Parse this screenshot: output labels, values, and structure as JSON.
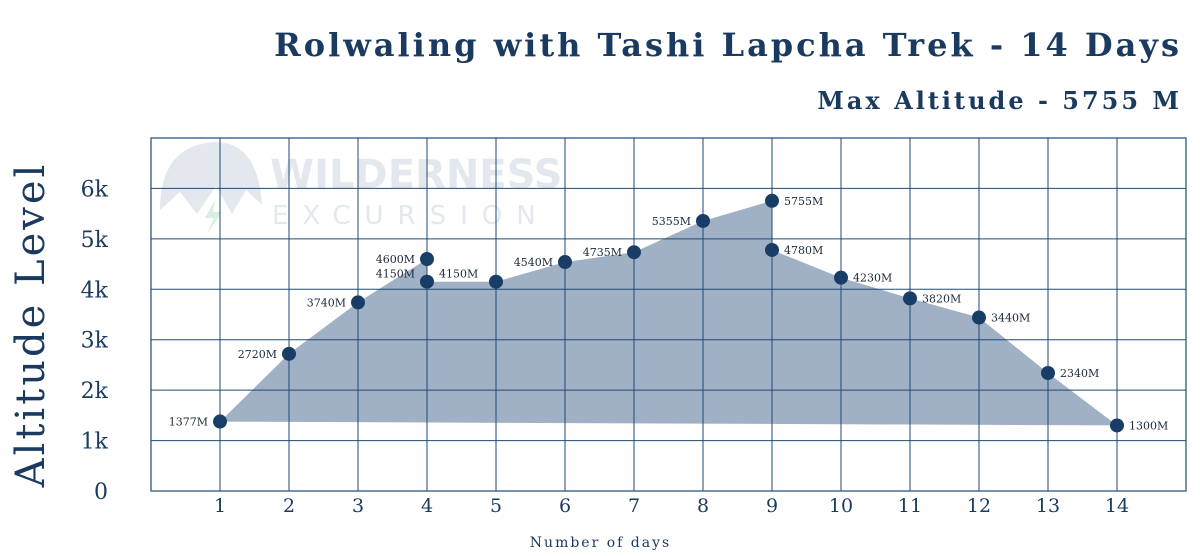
{
  "header": {
    "title": "Rolwaling with Tashi Lapcha Trek - 14 Days",
    "subtitle": "Max Altitude - 5755 M"
  },
  "watermark": {
    "line1": "WILDERNESS",
    "line2": "EXCURSION"
  },
  "colors": {
    "text": "#1a3a60",
    "grid": "#1f4a75",
    "area": "#a0b0c5",
    "marker": "#183d66"
  },
  "chart_data": {
    "type": "area",
    "xlabel": "Number of days",
    "ylabel": "Altitude Level",
    "xlim": [
      0,
      15
    ],
    "ylim": [
      0,
      7000
    ],
    "x_ticks": [
      "1",
      "2",
      "3",
      "4",
      "5",
      "6",
      "7",
      "8",
      "9",
      "10",
      "11",
      "12",
      "13",
      "14"
    ],
    "y_ticks": [
      {
        "value": 0,
        "label": "0"
      },
      {
        "value": 1000,
        "label": "1k"
      },
      {
        "value": 2000,
        "label": "2k"
      },
      {
        "value": 3000,
        "label": "3k"
      },
      {
        "value": 4000,
        "label": "4k"
      },
      {
        "value": 5000,
        "label": "5k"
      },
      {
        "value": 6000,
        "label": "6k"
      }
    ],
    "grid": true,
    "points": [
      {
        "x": 1,
        "y": 1377,
        "label": "1377M",
        "side": "left"
      },
      {
        "x": 2,
        "y": 2720,
        "label": "2720M",
        "side": "left"
      },
      {
        "x": 3,
        "y": 3740,
        "label": "3740M",
        "side": "left"
      },
      {
        "x": 4,
        "y": 4600,
        "label": "4600M",
        "side": "left"
      },
      {
        "x": 4,
        "y": 4150,
        "label": "4150M",
        "side": "left"
      },
      {
        "x": 4,
        "y": 4150,
        "label": "4150M",
        "side": "right"
      },
      {
        "x": 5,
        "y": 4150,
        "label": "",
        "side": "right"
      },
      {
        "x": 6,
        "y": 4540,
        "label": "4540M",
        "side": "left"
      },
      {
        "x": 7,
        "y": 4735,
        "label": "4735M",
        "side": "left"
      },
      {
        "x": 8,
        "y": 5355,
        "label": "5355M",
        "side": "left"
      },
      {
        "x": 9,
        "y": 5755,
        "label": "5755M",
        "side": "right"
      },
      {
        "x": 9,
        "y": 4780,
        "label": "4780M",
        "side": "right"
      },
      {
        "x": 10,
        "y": 4230,
        "label": "4230M",
        "side": "right"
      },
      {
        "x": 11,
        "y": 3820,
        "label": "3820M",
        "side": "right"
      },
      {
        "x": 12,
        "y": 3440,
        "label": "3440M",
        "side": "right"
      },
      {
        "x": 13,
        "y": 2340,
        "label": "2340M",
        "side": "right"
      },
      {
        "x": 14,
        "y": 1300,
        "label": "1300M",
        "side": "right"
      }
    ]
  }
}
